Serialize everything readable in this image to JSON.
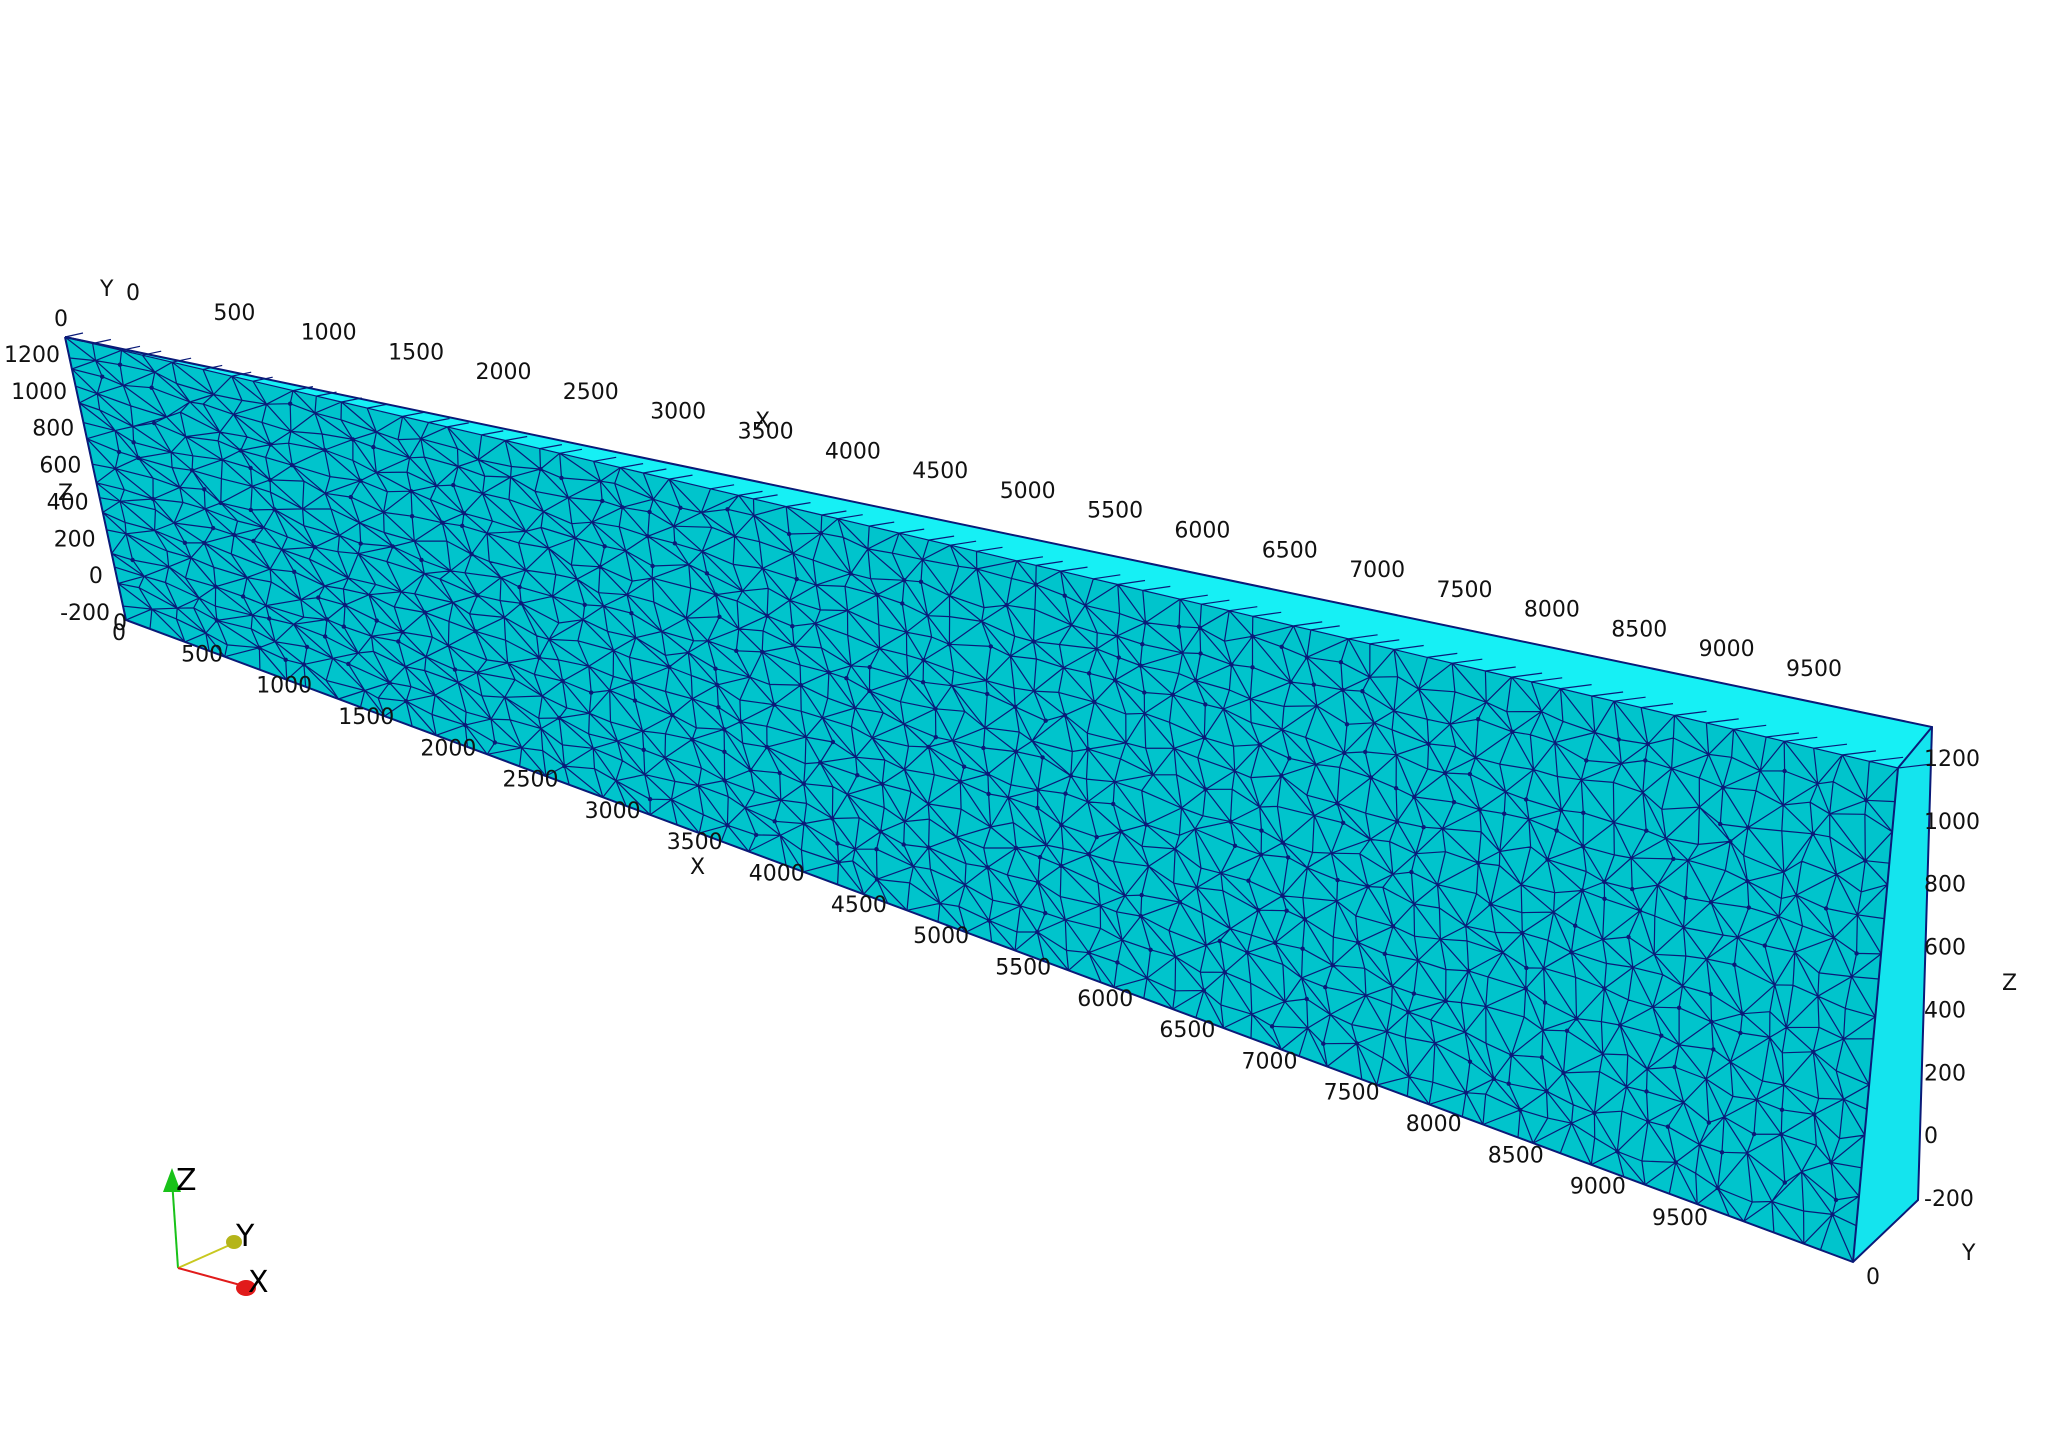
{
  "colors": {
    "background": "#ffffff",
    "front_face": "#00c4cc",
    "top_face": "#16f0f5",
    "end_face": "#14e4ee",
    "mesh_edges": "#0a1a78",
    "x_axis_arrow": "#e11b1b",
    "y_axis_arrow": "#b5b51a",
    "z_axis_arrow": "#19c219",
    "label_text": "#111111"
  },
  "axes": {
    "x_top": {
      "title": "X",
      "ticks": [
        "0",
        "500",
        "1000",
        "1500",
        "2000",
        "2500",
        "3000",
        "3500",
        "4000",
        "4500",
        "5000",
        "5500",
        "6000",
        "6500",
        "7000",
        "7500",
        "8000",
        "8500",
        "9000",
        "9500"
      ]
    },
    "x_bottom": {
      "title": "X",
      "ticks": [
        "0",
        "500",
        "1000",
        "1500",
        "2000",
        "2500",
        "3000",
        "3500",
        "4000",
        "4500",
        "5000",
        "5500",
        "6000",
        "6500",
        "7000",
        "7500",
        "8000",
        "8500",
        "9000",
        "9500"
      ]
    },
    "z_left": {
      "title": "Z",
      "ticks": [
        "1200",
        "1000",
        "800",
        "600",
        "400",
        "200",
        "0",
        "-200"
      ]
    },
    "z_right": {
      "title": "Z",
      "ticks": [
        "1200",
        "1000",
        "800",
        "600",
        "400",
        "200",
        "0",
        "-200"
      ]
    },
    "y_left": {
      "title": "Y",
      "ticks": [
        "0",
        "0"
      ]
    },
    "y_right": {
      "title": "Y",
      "ticks": [
        "0"
      ]
    }
  },
  "orientation_triad": {
    "icon": "axes-orientation-triad-icon",
    "labels": {
      "x": "X",
      "y": "Y",
      "z": "Z"
    }
  },
  "mesh": {
    "icon": "tetrahedral-mesh-beam",
    "seed": 7
  }
}
